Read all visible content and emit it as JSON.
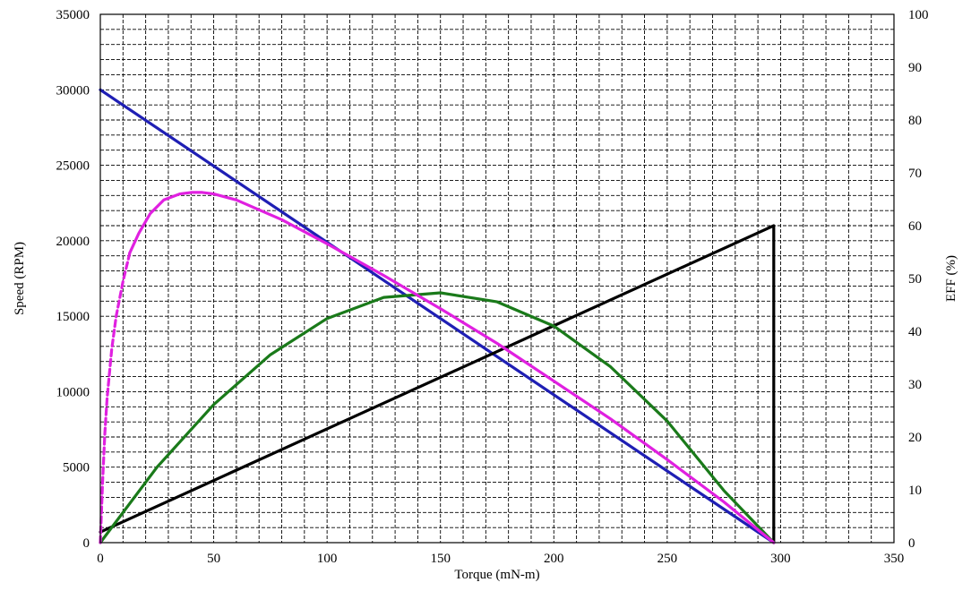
{
  "chart_data": {
    "type": "line",
    "xlabel": "Torque (mN-m)",
    "ylabel": "Speed (RPM)",
    "y2label": "EFF (%)",
    "xlim": [
      0,
      350
    ],
    "ylim": [
      0,
      35000
    ],
    "y2lim": [
      0,
      100
    ],
    "x_ticks": [
      0,
      50,
      100,
      150,
      200,
      250,
      300,
      350
    ],
    "y_ticks": [
      0,
      5000,
      10000,
      15000,
      20000,
      25000,
      30000,
      35000
    ],
    "y2_ticks": [
      0,
      10,
      20,
      30,
      40,
      50,
      60,
      70,
      80,
      90,
      100
    ],
    "grid": true,
    "grid_minor": {
      "x_per_major": 5,
      "y_per_major": 5
    },
    "series": [
      {
        "key": "speed",
        "axis": "left",
        "color": "#1f1fb4",
        "style": "solid",
        "x": [
          0,
          297
        ],
        "y": [
          30000,
          0
        ]
      },
      {
        "key": "current",
        "axis": "right",
        "color": "#000000",
        "style": "solid",
        "x": [
          0,
          297,
          297
        ],
        "y": [
          2,
          60,
          0
        ]
      },
      {
        "key": "output",
        "axis": "left",
        "color": "#1a7a1a",
        "style": "solid",
        "x": [
          0,
          25,
          50,
          75,
          100,
          125,
          150,
          175,
          200,
          225,
          250,
          275,
          297
        ],
        "y": [
          0,
          5000,
          9150,
          12450,
          14850,
          16250,
          16550,
          15950,
          14350,
          11650,
          8050,
          3450,
          0
        ]
      },
      {
        "key": "efficiency",
        "axis": "left",
        "color": "#e020e0",
        "style": "dashed",
        "x": [
          0,
          1,
          2,
          3,
          5,
          7,
          10,
          13
        ],
        "y": [
          0,
          4000,
          7300,
          9600,
          12800,
          15000,
          17300,
          19200
        ]
      },
      {
        "key": "efficiency",
        "axis": "left",
        "color": "#e020e0",
        "style": "solid",
        "x": [
          13,
          17,
          22,
          28,
          35,
          40,
          45,
          50,
          60,
          80,
          100,
          125,
          150,
          175,
          200,
          225,
          250,
          275,
          297
        ],
        "y": [
          19200,
          20500,
          21800,
          22700,
          23100,
          23200,
          23200,
          23100,
          22700,
          21400,
          19800,
          17700,
          15500,
          13200,
          10700,
          8200,
          5500,
          2700,
          0
        ]
      }
    ]
  }
}
